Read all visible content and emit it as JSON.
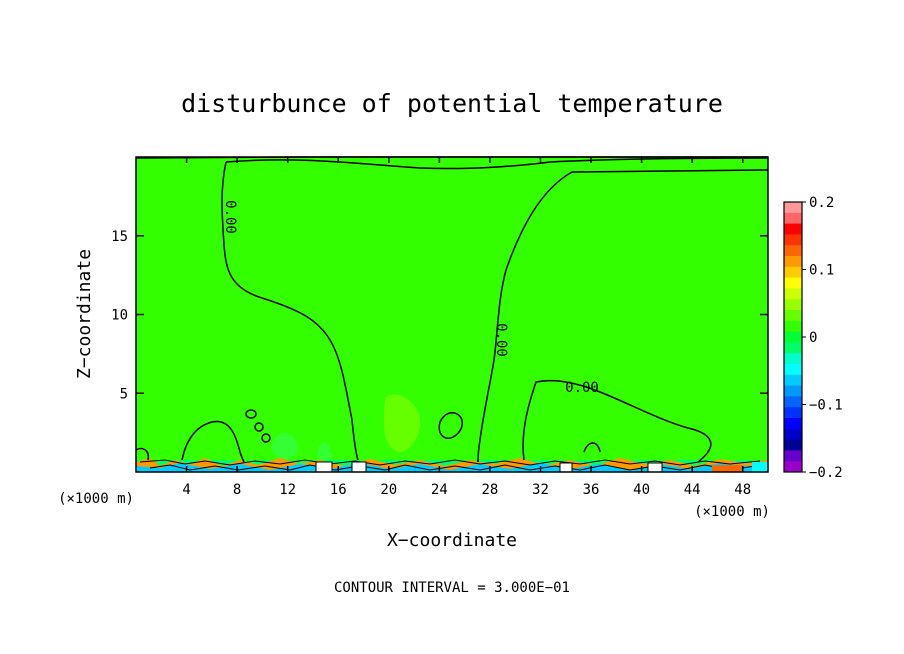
{
  "chart_data": {
    "type": "heatmap",
    "title": "disturbunce of potential temperature",
    "xlabel": "X−coordinate",
    "ylabel": "Z−coordinate",
    "x_unit_left": "(×1000 m)",
    "x_unit_right": "(×1000 m)",
    "footer": "CONTOUR INTERVAL = 3.000E−01",
    "xlim": [
      0,
      50
    ],
    "ylim": [
      0,
      20
    ],
    "x_ticks": [
      4,
      8,
      12,
      16,
      20,
      24,
      28,
      32,
      36,
      40,
      44,
      48
    ],
    "x_tick_labels": [
      "4",
      "8",
      "12",
      "16",
      "20",
      "24",
      "28",
      "32",
      "36",
      "40",
      "44",
      "48"
    ],
    "y_ticks": [
      5,
      10,
      15
    ],
    "y_tick_labels": [
      "5",
      "10",
      "15"
    ],
    "contour_labels": [
      "0.00",
      "0.00",
      "0.00"
    ],
    "background_value": 0,
    "colorbar": {
      "min": -0.2,
      "max": 0.2,
      "tick_values": [
        0.2,
        0.1,
        0,
        -0.1,
        -0.2
      ],
      "tick_labels": [
        "0.2",
        "0.1",
        "0",
        "−0.1",
        "−0.2"
      ],
      "colors": [
        "#ff9999",
        "#ff6666",
        "#ff0000",
        "#ff3300",
        "#ff6600",
        "#ff9900",
        "#ffcc00",
        "#ffff00",
        "#ccff00",
        "#99ff00",
        "#66ff00",
        "#33ff00",
        "#00ff33",
        "#00ff66",
        "#00ffcc",
        "#00ffff",
        "#00ccff",
        "#0099ff",
        "#0066ff",
        "#0033ff",
        "#0000ff",
        "#0000cc",
        "#000099",
        "#6600cc",
        "#9900cc"
      ]
    }
  }
}
